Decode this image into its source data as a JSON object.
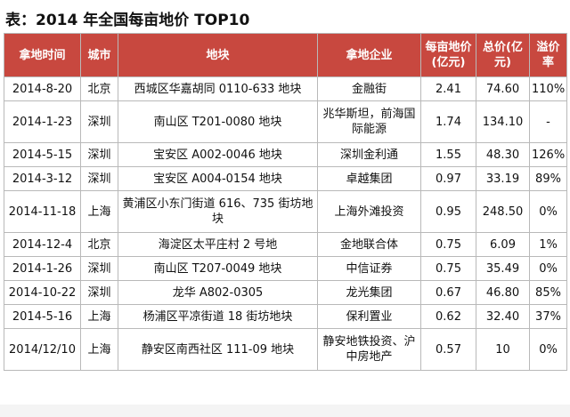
{
  "title": "表：2014 年全国每亩地价 TOP10",
  "headers": {
    "date": "拿地时间",
    "city": "城市",
    "plot": "地块",
    "company": "拿地企业",
    "unit_price": "每亩地价(亿元)",
    "total_price": "总价(亿元)",
    "premium": "溢价率"
  },
  "rows": [
    {
      "date": "2014-8-20",
      "city": "北京",
      "plot": "西城区华嘉胡同 0110-633 地块",
      "company": "金融街",
      "unit_price": "2.41",
      "total_price": "74.60",
      "premium": "110%"
    },
    {
      "date": "2014-1-23",
      "city": "深圳",
      "plot": "南山区 T201-0080 地块",
      "company": "兆华斯坦，前海国际能源",
      "unit_price": "1.74",
      "total_price": "134.10",
      "premium": "-"
    },
    {
      "date": "2014-5-15",
      "city": "深圳",
      "plot": "宝安区 A002-0046 地块",
      "company": "深圳金利通",
      "unit_price": "1.55",
      "total_price": "48.30",
      "premium": "126%"
    },
    {
      "date": "2014-3-12",
      "city": "深圳",
      "plot": "宝安区 A004-0154 地块",
      "company": "卓越集团",
      "unit_price": "0.97",
      "total_price": "33.19",
      "premium": "89%"
    },
    {
      "date": "2014-11-18",
      "city": "上海",
      "plot": "黄浦区小东门街道 616、735 街坊地块",
      "company": "上海外滩投资",
      "unit_price": "0.95",
      "total_price": "248.50",
      "premium": "0%"
    },
    {
      "date": "2014-12-4",
      "city": "北京",
      "plot": "海淀区太平庄村 2 号地",
      "company": "金地联合体",
      "unit_price": "0.75",
      "total_price": "6.09",
      "premium": "1%"
    },
    {
      "date": "2014-1-26",
      "city": "深圳",
      "plot": "南山区 T207-0049 地块",
      "company": "中信证券",
      "unit_price": "0.75",
      "total_price": "35.49",
      "premium": "0%"
    },
    {
      "date": "2014-10-22",
      "city": "深圳",
      "plot": "龙华 A802-0305",
      "company": "龙光集团",
      "unit_price": "0.67",
      "total_price": "46.80",
      "premium": "85%"
    },
    {
      "date": "2014-5-16",
      "city": "上海",
      "plot": "杨浦区平凉街道 18 街坊地块",
      "company": "保利置业",
      "unit_price": "0.62",
      "total_price": "32.40",
      "premium": "37%"
    },
    {
      "date": "2014/12/10",
      "city": "上海",
      "plot": "静安区南西社区 111-09 地块",
      "company": "静安地铁投资、沪中房地产",
      "unit_price": "0.57",
      "total_price": "10",
      "premium": "0%"
    }
  ]
}
